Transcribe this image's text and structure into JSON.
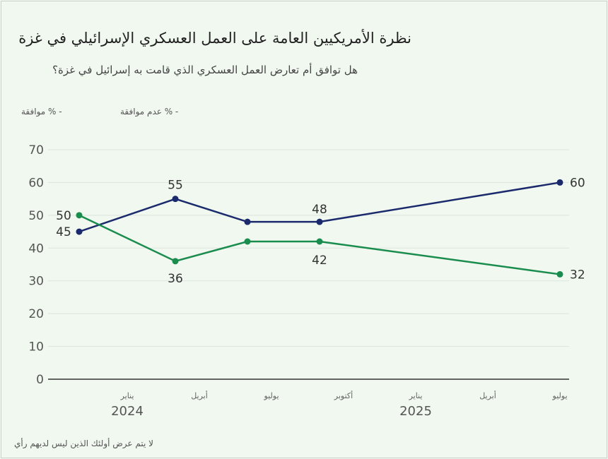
{
  "chart_data": {
    "type": "line",
    "title": "نظرة الأمريكيين العامة على العمل العسكري الإسرائيلي في غزة",
    "subtitle": "هل توافق أم تعارض العمل العسكري الذي قامت به إسرائيل في غزة؟",
    "legend": [
      "- % موافقة",
      "- % عدم موافقة"
    ],
    "x": [
      "2023-11",
      "2024-03",
      "2024-06",
      "2024-09",
      "2025-07"
    ],
    "series": [
      {
        "name": "% عدم موافقة",
        "color": "#1a2a6c",
        "values": [
          45,
          55,
          48,
          48,
          60
        ]
      },
      {
        "name": "% موافقة",
        "color": "#1a8c4e",
        "values": [
          50,
          36,
          42,
          42,
          32
        ]
      }
    ],
    "ylim": [
      0,
      70
    ],
    "yticks": [
      "0",
      "10",
      "20",
      "30",
      "40",
      "50",
      "60",
      "70"
    ],
    "xticks": [
      {
        "date": "2024-01",
        "label": "يناير"
      },
      {
        "date": "2024-04",
        "label": "أبريل"
      },
      {
        "date": "2024-07",
        "label": "يوليو"
      },
      {
        "date": "2024-10",
        "label": "أكتوبر"
      },
      {
        "date": "2025-01",
        "label": "يناير"
      },
      {
        "date": "2025-04",
        "label": "أبريل"
      },
      {
        "date": "2025-07",
        "label": "يوليو"
      }
    ],
    "years": [
      {
        "date": "2024-01",
        "label": "2024"
      },
      {
        "date": "2025-01",
        "label": "2025"
      }
    ],
    "grid": true,
    "legend_placement": "top-left",
    "note": "لا يتم عرض أولئك الذين ليس لديهم رأي"
  }
}
